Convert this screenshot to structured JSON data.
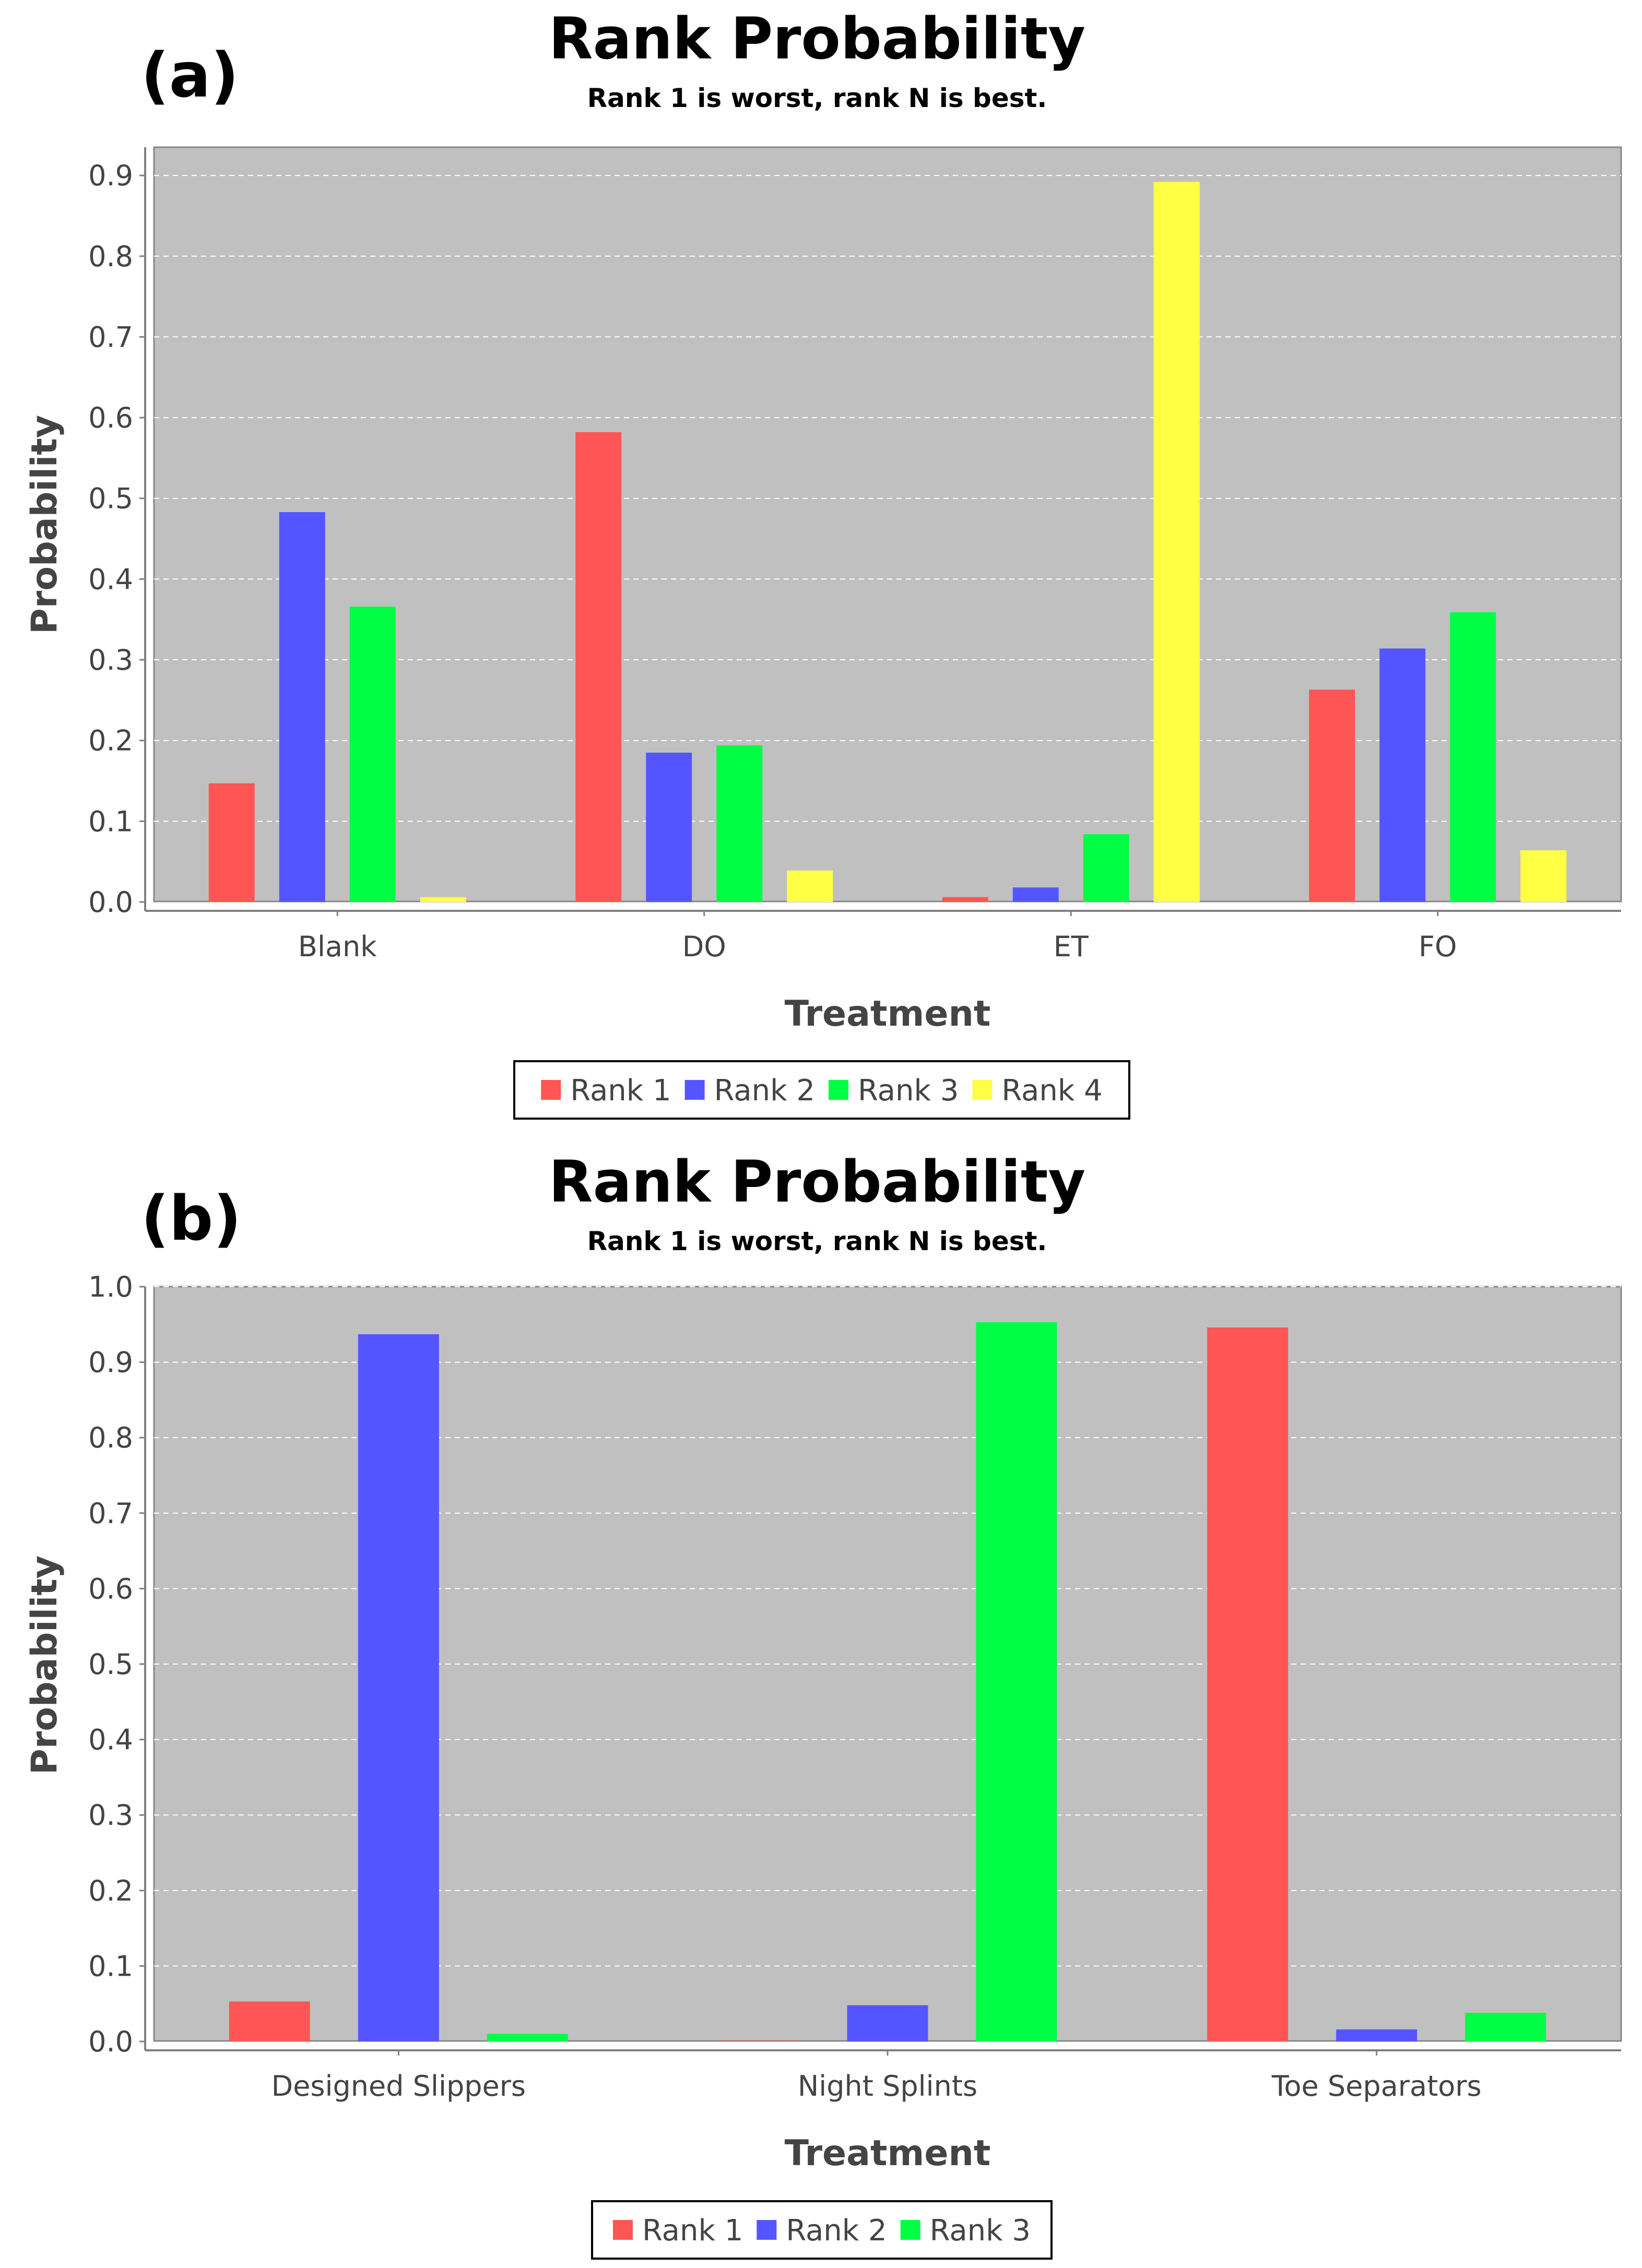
{
  "chart_data": [
    {
      "type": "bar",
      "panel_label": "(a)",
      "title": "Rank Probability",
      "subtitle": "Rank 1 is worst, rank N is best.",
      "xlabel": "Treatment",
      "ylabel": "Probability",
      "ylim": [
        0,
        0.935
      ],
      "yticks": [
        "0.0",
        "0.1",
        "0.2",
        "0.3",
        "0.4",
        "0.5",
        "0.6",
        "0.7",
        "0.8",
        "0.9"
      ],
      "categories": [
        "Blank",
        "DO",
        "ET",
        "FO"
      ],
      "series": [
        {
          "name": "Rank 1",
          "color": "#ff5555",
          "values": [
            0.147,
            0.582,
            0.006,
            0.263
          ]
        },
        {
          "name": "Rank 2",
          "color": "#5555ff",
          "values": [
            0.483,
            0.185,
            0.018,
            0.314
          ]
        },
        {
          "name": "Rank 3",
          "color": "#00ff44",
          "values": [
            0.366,
            0.194,
            0.084,
            0.359
          ]
        },
        {
          "name": "Rank 4",
          "color": "#ffff44",
          "values": [
            0.006,
            0.039,
            0.892,
            0.064
          ]
        }
      ],
      "legend": "bottom"
    },
    {
      "type": "bar",
      "panel_label": "(b)",
      "title": "Rank Probability",
      "subtitle": "Rank 1 is worst, rank N is best.",
      "xlabel": "Treatment",
      "ylabel": "Probability",
      "ylim": [
        0,
        1.0
      ],
      "yticks": [
        "0.0",
        "0.1",
        "0.2",
        "0.3",
        "0.4",
        "0.5",
        "0.6",
        "0.7",
        "0.8",
        "0.9",
        "1.0"
      ],
      "categories": [
        "Designed Slippers",
        "Night Splints",
        "Toe Separators"
      ],
      "series": [
        {
          "name": "Rank 1",
          "color": "#ff5555",
          "values": [
            0.053,
            0.001,
            0.946
          ]
        },
        {
          "name": "Rank 2",
          "color": "#5555ff",
          "values": [
            0.937,
            0.048,
            0.016
          ]
        },
        {
          "name": "Rank 3",
          "color": "#00ff44",
          "values": [
            0.01,
            0.953,
            0.038
          ]
        }
      ],
      "legend": "bottom"
    }
  ]
}
